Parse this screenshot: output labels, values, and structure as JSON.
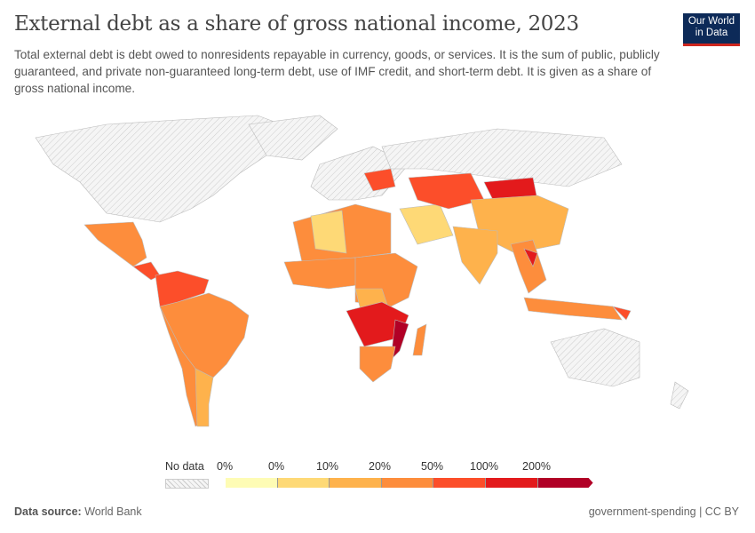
{
  "header": {
    "title": "External debt as a share of gross national income, 2023",
    "subtitle": "Total external debt is debt owed to nonresidents repayable in currency, goods, or services. It is the sum of public, publicly guaranteed, and private non-guaranteed long-term debt, use of IMF credit, and short-term debt. It is given as a share of gross national income.",
    "logo": "Our World in Data"
  },
  "legend": {
    "no_data": "No data",
    "labels": [
      "0%",
      "0%",
      "10%",
      "20%",
      "50%",
      "100%",
      "200%"
    ],
    "colors": [
      "#fefcb5",
      "#fed976",
      "#feb24c",
      "#fd8d3c",
      "#fc4e2a",
      "#e31a1c",
      "#b10026"
    ],
    "no_data_color": "#e8e8e8"
  },
  "footer": {
    "source_label": "Data source:",
    "source": "World Bank",
    "right": "government-spending | CC BY"
  }
}
